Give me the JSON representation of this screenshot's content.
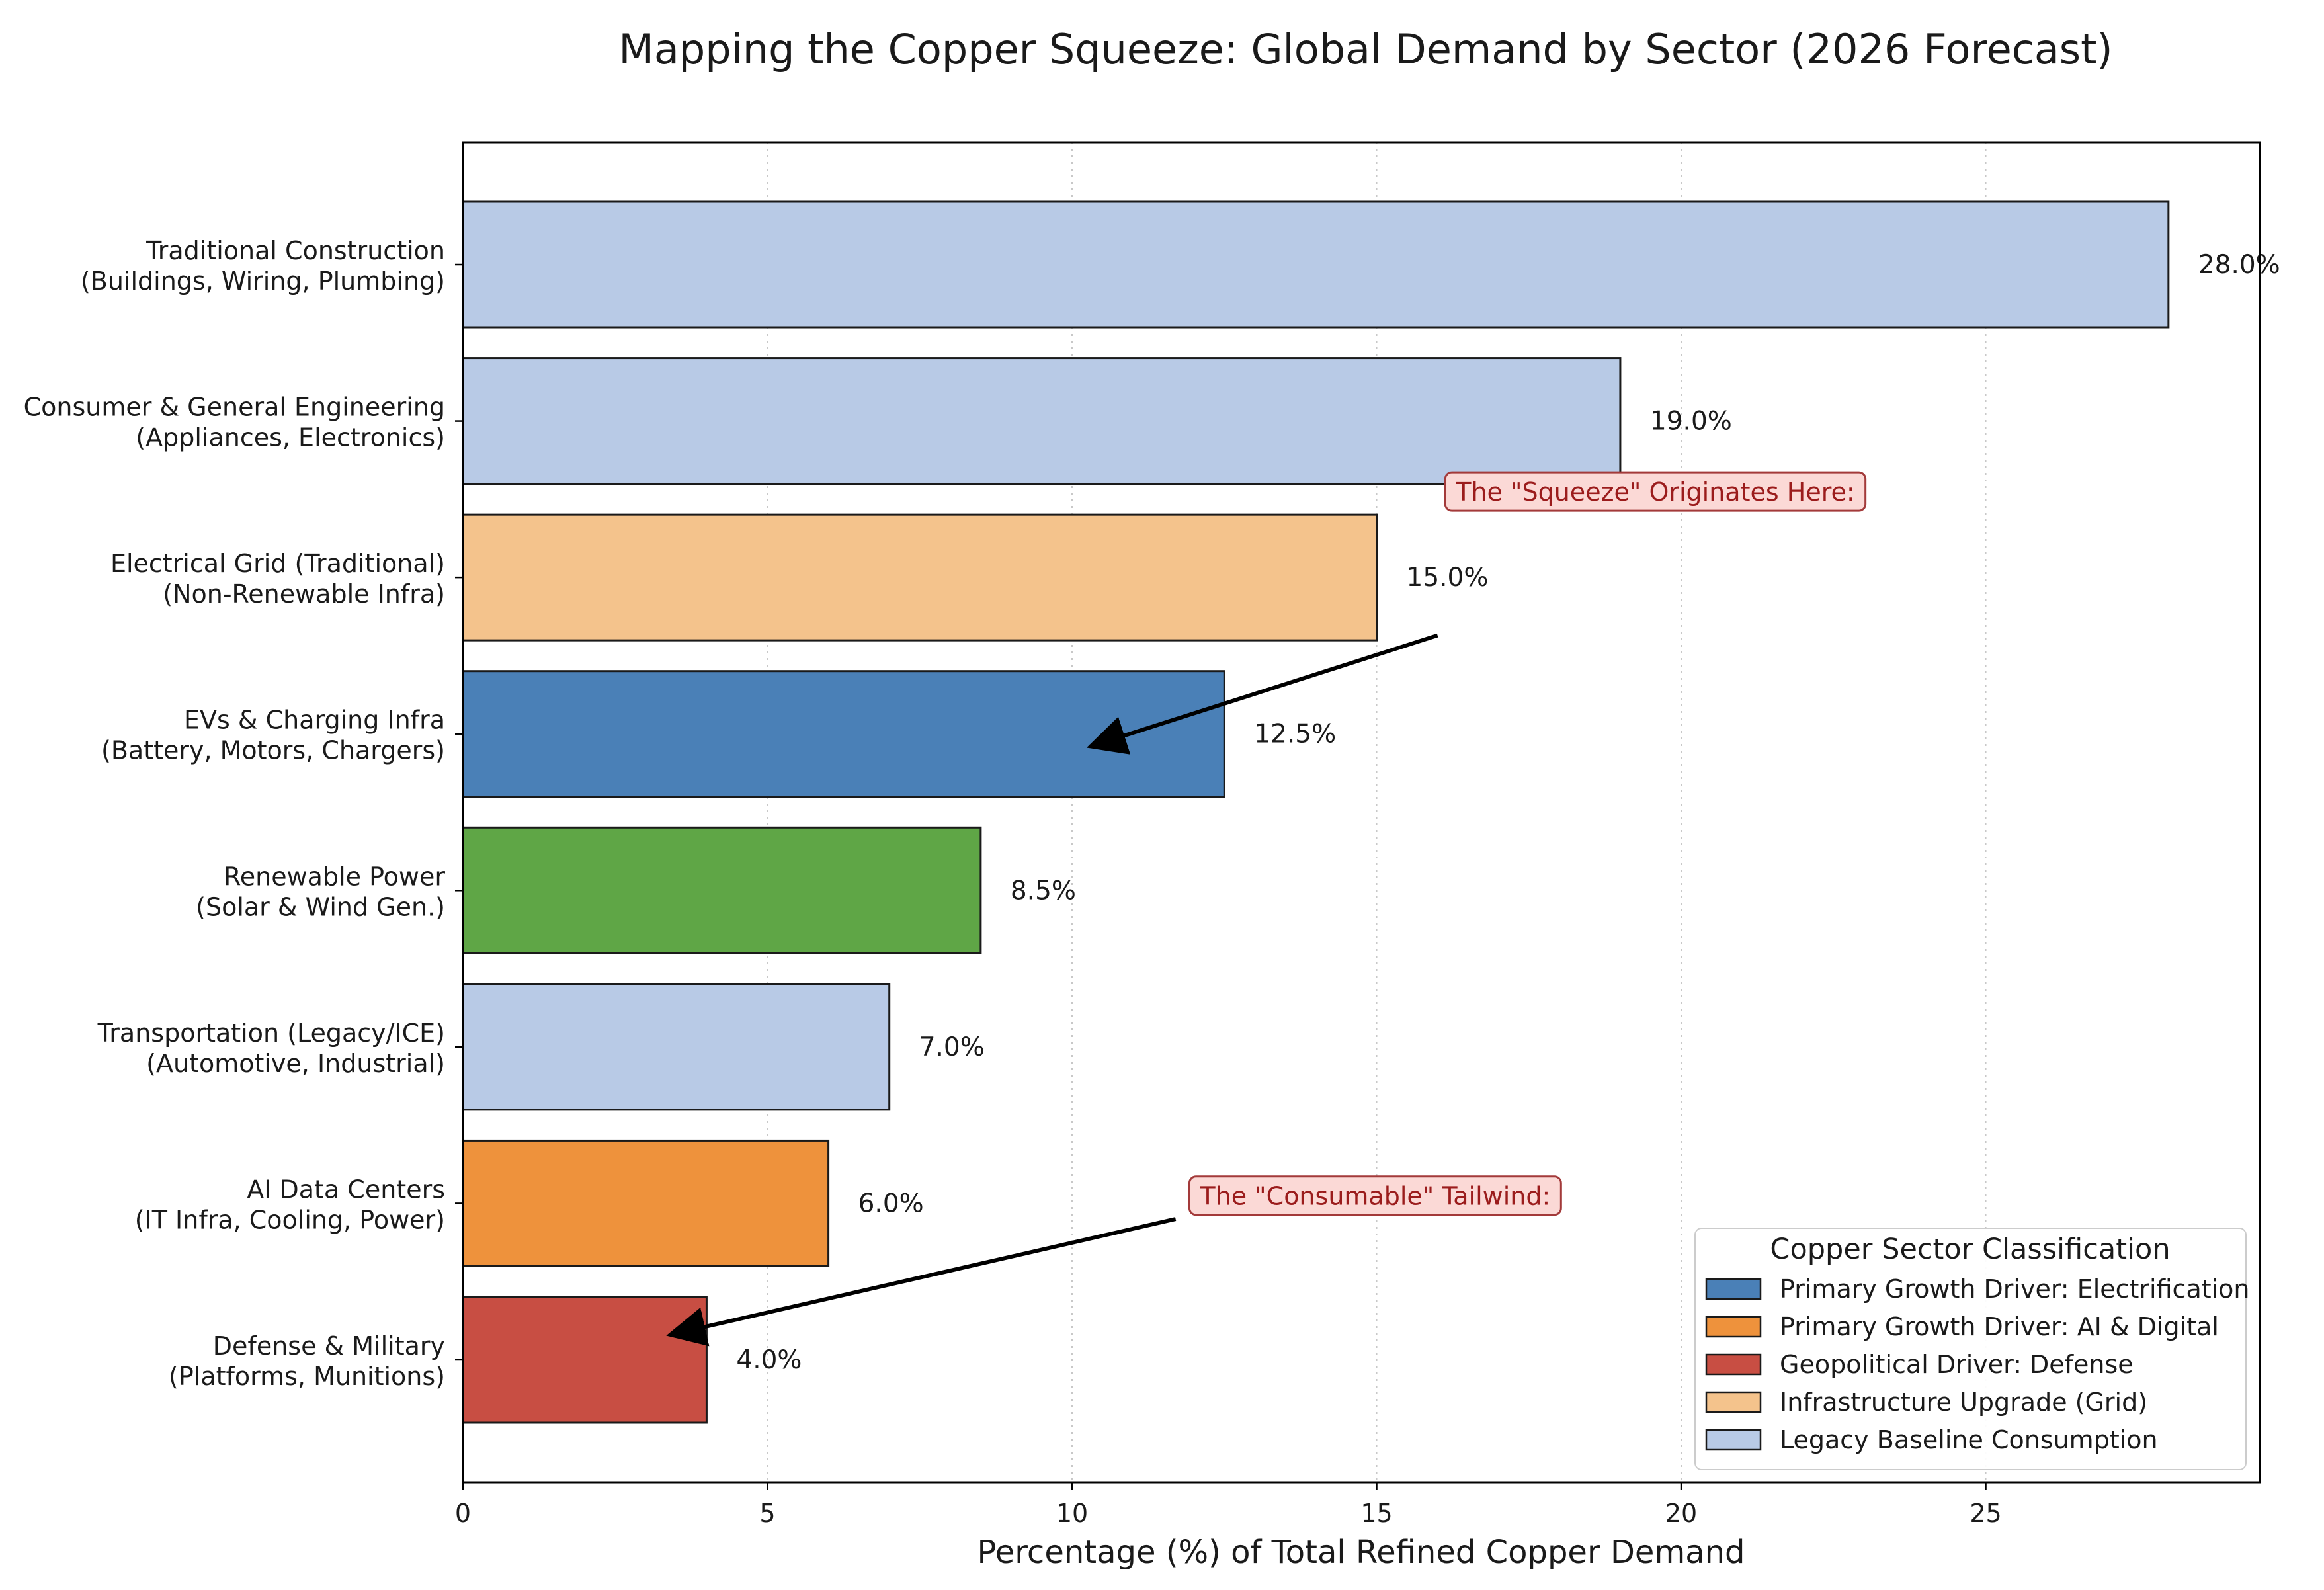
{
  "chart_data": {
    "type": "bar",
    "orientation": "horizontal",
    "title": "Mapping the Copper Squeeze: Global Demand by Sector (2026 Forecast)",
    "xlabel": "Percentage (%) of Total Refined Copper Demand",
    "ylabel": "",
    "xlim": [
      0,
      29.5
    ],
    "xticks": [
      "0",
      "5",
      "10",
      "15",
      "20",
      "25"
    ],
    "xtick_values": [
      0,
      5,
      10,
      15,
      20,
      25
    ],
    "grid": "vertical dotted",
    "categories": [
      {
        "line1": "Traditional Construction",
        "line2": "(Buildings, Wiring, Plumbing)"
      },
      {
        "line1": "Consumer & General Engineering",
        "line2": "(Appliances, Electronics)"
      },
      {
        "line1": "Electrical Grid (Traditional)",
        "line2": "(Non-Renewable Infra)"
      },
      {
        "line1": "EVs & Charging Infra",
        "line2": "(Battery, Motors, Chargers)"
      },
      {
        "line1": "Renewable Power",
        "line2": "(Solar & Wind Gen.)"
      },
      {
        "line1": "Transportation (Legacy/ICE)",
        "line2": "(Automotive, Industrial)"
      },
      {
        "line1": "AI Data Centers",
        "line2": "(IT Infra, Cooling, Power)"
      },
      {
        "line1": "Defense & Military",
        "line2": "(Platforms, Munitions)"
      }
    ],
    "values": [
      28.0,
      19.0,
      15.0,
      12.5,
      8.5,
      7.0,
      6.0,
      4.0
    ],
    "value_labels": [
      "28.0%",
      "19.0%",
      "15.0%",
      "12.5%",
      "8.5%",
      "7.0%",
      "6.0%",
      "4.0%"
    ],
    "bar_colors": [
      "#b8cae6",
      "#b8cae6",
      "#f4c38c",
      "#4a80b7",
      "#5fa646",
      "#b8cae6",
      "#ee923c",
      "#c84e43"
    ],
    "annotations": [
      {
        "text": "The \"Squeeze\" Originates Here:",
        "arrow_from": [
          16.0,
          2.37
        ],
        "arrow_to": [
          10.3,
          3.08
        ],
        "text_at": [
          16.3,
          1.48
        ]
      },
      {
        "text": "The \"Consumable\" Tailwind:",
        "arrow_from": [
          11.7,
          6.1
        ],
        "arrow_to": [
          3.4,
          6.84
        ],
        "text_at": [
          12.1,
          5.98
        ]
      }
    ],
    "legend": {
      "title": "Copper Sector Classification",
      "placement": "lower-right",
      "items": [
        {
          "label": "Primary Growth Driver: Electrification",
          "color": "#4a80b7"
        },
        {
          "label": "Primary Growth Driver: AI & Digital",
          "color": "#ee923c"
        },
        {
          "label": "Geopolitical Driver: Defense",
          "color": "#c84e43"
        },
        {
          "label": "Infrastructure Upgrade (Grid)",
          "color": "#f4c38c"
        },
        {
          "label": "Legacy Baseline Consumption",
          "color": "#b8cae6"
        }
      ]
    },
    "colors": {
      "annotation_fill": "#fbd9d6",
      "annotation_border": "#a33a3a",
      "annotation_text": "#9b1c1c",
      "bar_edge": "#1a1a1a"
    }
  }
}
